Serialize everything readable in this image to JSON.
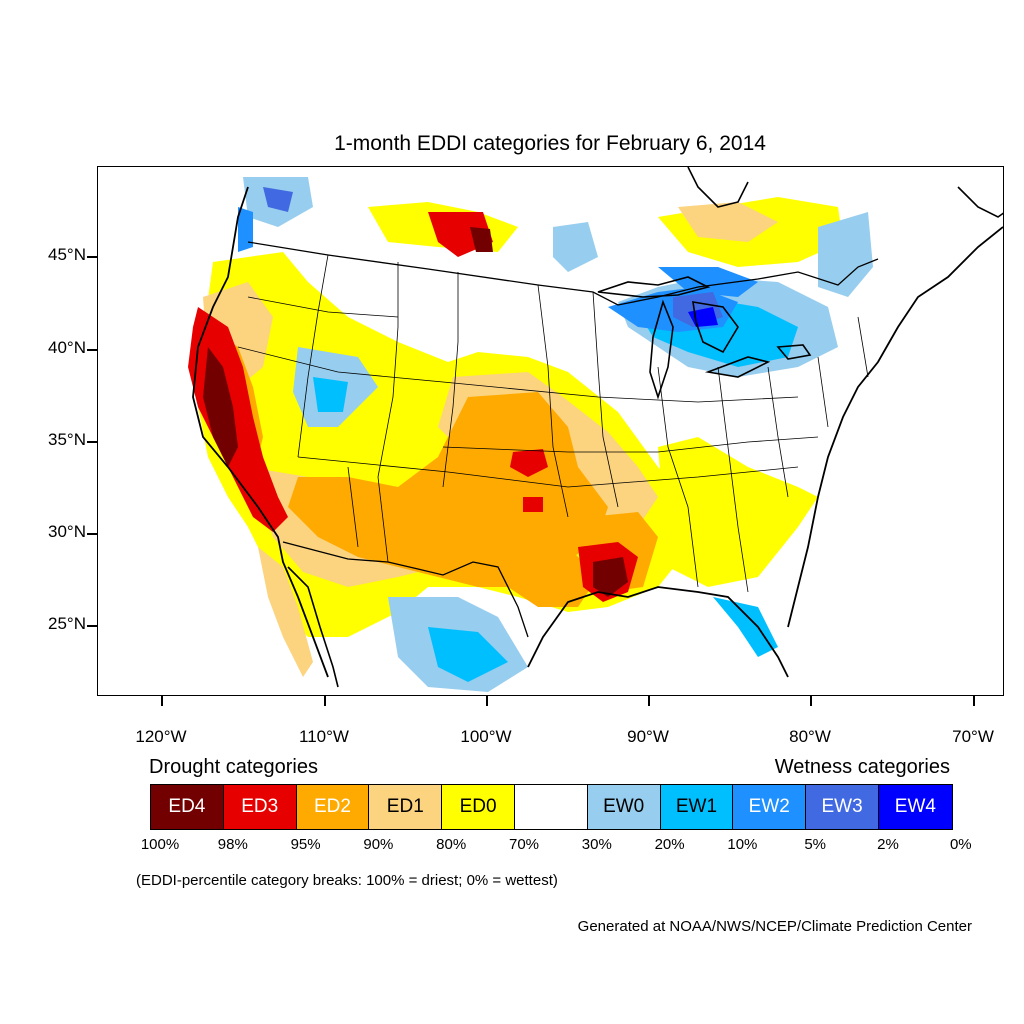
{
  "title": "1-month EDDI categories for February 6, 2014",
  "map": {
    "lat_labels": [
      "45°N",
      "40°N",
      "35°N",
      "30°N",
      "25°N"
    ],
    "lon_labels": [
      "120°W",
      "110°W",
      "100°W",
      "90°W",
      "80°W",
      "70°W"
    ]
  },
  "legend": {
    "drought_title": "Drought categories",
    "wetness_title": "Wetness categories",
    "categories": [
      {
        "label": "ED4",
        "color": "#730000",
        "text_color": "#ffffff"
      },
      {
        "label": "ED3",
        "color": "#e60000",
        "text_color": "#ffffff"
      },
      {
        "label": "ED2",
        "color": "#ffaa00",
        "text_color": "#ffffff"
      },
      {
        "label": "ED1",
        "color": "#fcd37f",
        "text_color": "#000000"
      },
      {
        "label": "ED0",
        "color": "#ffff00",
        "text_color": "#000000"
      },
      {
        "label": "",
        "color": "#ffffff",
        "text_color": "#000000"
      },
      {
        "label": "EW0",
        "color": "#97cdee",
        "text_color": "#000000"
      },
      {
        "label": "EW1",
        "color": "#00bfff",
        "text_color": "#000000"
      },
      {
        "label": "EW2",
        "color": "#1e90ff",
        "text_color": "#ffffff"
      },
      {
        "label": "EW3",
        "color": "#4169e1",
        "text_color": "#ffffff"
      },
      {
        "label": "EW4",
        "color": "#0000ff",
        "text_color": "#ffffff"
      }
    ],
    "percentiles": [
      "100%",
      "98%",
      "95%",
      "90%",
      "80%",
      "70%",
      "30%",
      "20%",
      "10%",
      "5%",
      "2%",
      "0%"
    ]
  },
  "note": "(EDDI-percentile category breaks: 100% = driest; 0% = wettest)",
  "credit": "Generated at NOAA/NWS/NCEP/Climate Prediction Center"
}
